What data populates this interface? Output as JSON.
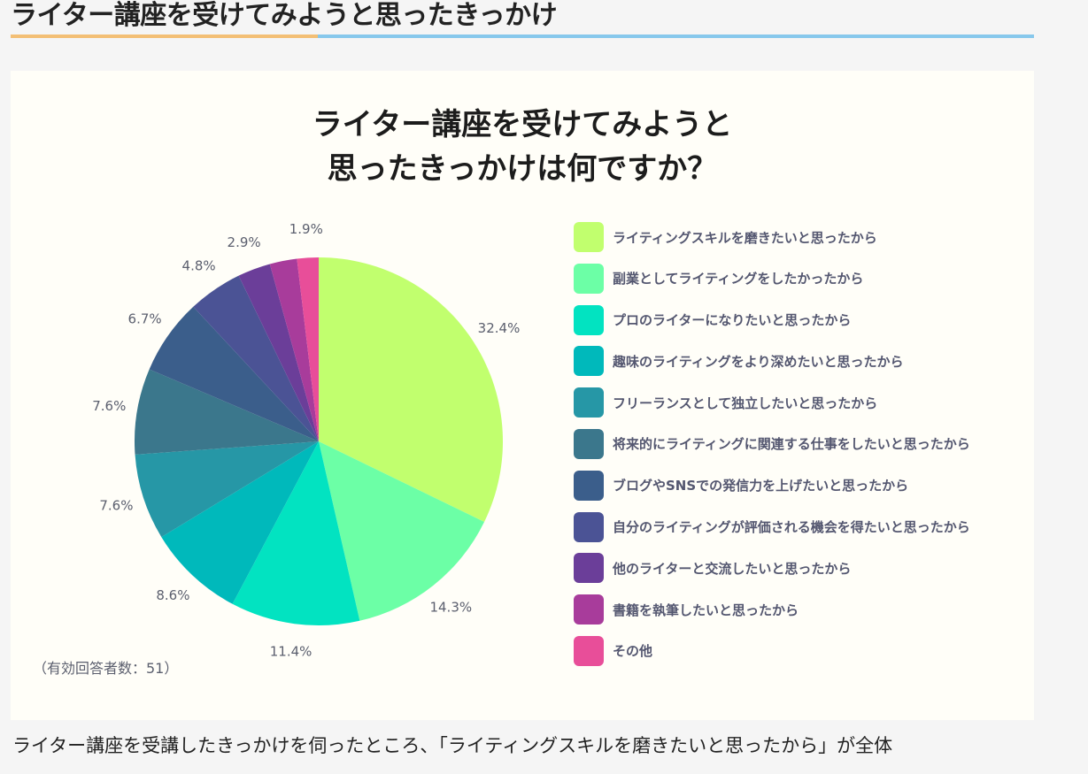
{
  "heading": {
    "title": "ライター講座を受けてみようと思ったきっかけ"
  },
  "chart_data": {
    "type": "pie",
    "title_lines": [
      "ライター講座を受けてみようと",
      "思ったきっかけは何ですか？"
    ],
    "slices": [
      {
        "label": "ライティングスキルを磨きたいと思ったから",
        "value": 32.4,
        "value_label": "32.4%",
        "color": "#c1ff6e"
      },
      {
        "label": "副業としてライティングをしたかったから",
        "value": 14.3,
        "value_label": "14.3%",
        "color": "#6cffa6"
      },
      {
        "label": "プロのライターになりたいと思ったから",
        "value": 11.4,
        "value_label": "11.4%",
        "color": "#02e3c1"
      },
      {
        "label": "趣味のライティングをより深めたいと思ったから",
        "value": 8.6,
        "value_label": "8.6%",
        "color": "#00b9bb"
      },
      {
        "label": "フリーランスとして独立したいと思ったから",
        "value": 7.6,
        "value_label": "7.6%",
        "color": "#2697a6"
      },
      {
        "label": "将来的にライティングに関連する仕事をしたいと思ったから",
        "value": 7.6,
        "value_label": "7.6%",
        "color": "#3b778c"
      },
      {
        "label": "ブログやSNSでの発信力を上げたいと思ったから",
        "value": 6.7,
        "value_label": "6.7%",
        "color": "#3b5e8b"
      },
      {
        "label": "自分のライティングが評価される機会を得たいと思ったから",
        "value": 4.8,
        "value_label": "4.8%",
        "color": "#4b5395"
      },
      {
        "label": "他のライターと交流したいと思ったから",
        "value": 2.9,
        "value_label": "2.9%",
        "color": "#6b3e99"
      },
      {
        "label": "書籍を執筆したいと思ったから",
        "value": 2.4,
        "value_label": "",
        "color": "#a83c9b"
      },
      {
        "label": "その他",
        "value": 1.9,
        "value_label": "1.9%",
        "color": "#e84e99"
      }
    ],
    "note": "（有効回答者数：51）",
    "legend_position": "right"
  },
  "body_text": "ライター講座を受講したきっかけを伺ったところ、「ライティングスキルを磨きたいと思ったから」が全体"
}
